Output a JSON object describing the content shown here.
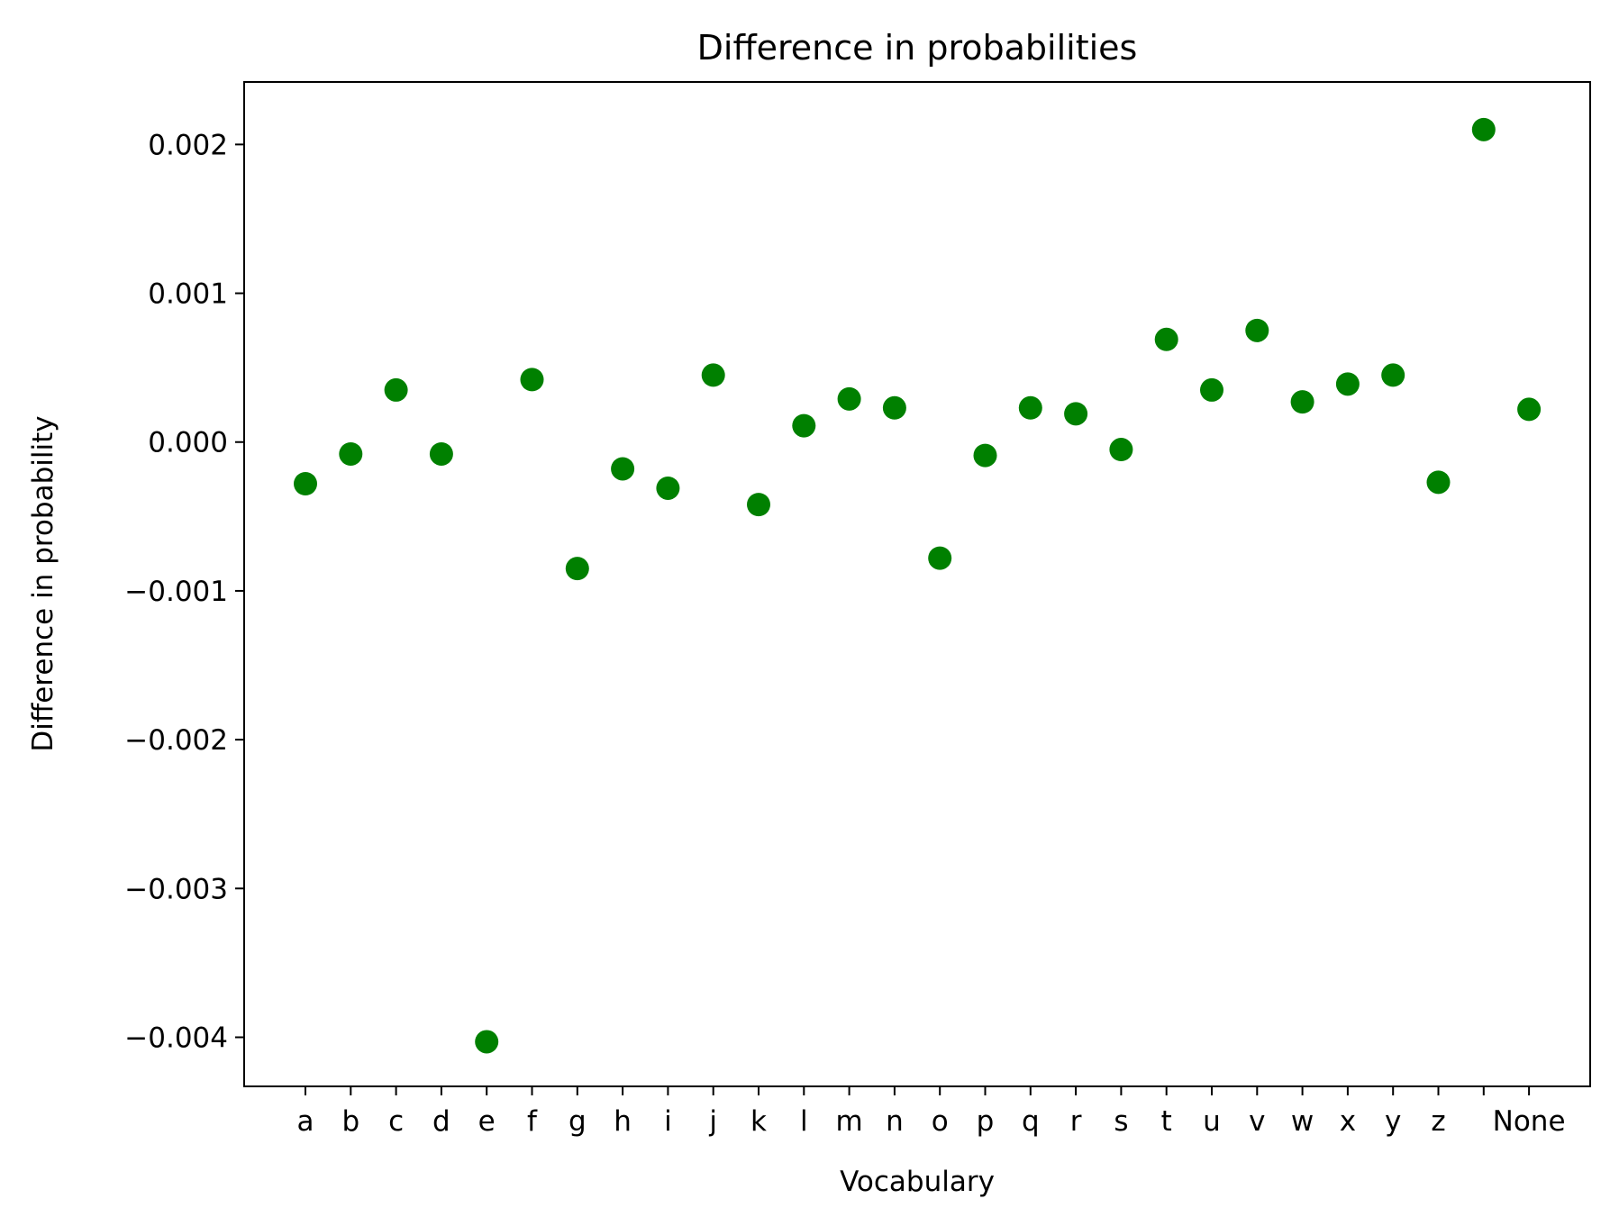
{
  "chart_data": {
    "type": "scatter",
    "title": "Difference in probabilities",
    "xlabel": "Vocabulary",
    "ylabel": "Difference in probability",
    "categories": [
      "a",
      "b",
      "c",
      "d",
      "e",
      "f",
      "g",
      "h",
      "i",
      "j",
      "k",
      "l",
      "m",
      "n",
      "o",
      "p",
      "q",
      "r",
      "s",
      "t",
      "u",
      "v",
      "w",
      "x",
      "y",
      "z",
      "",
      "None"
    ],
    "values": [
      -0.00028,
      -8e-05,
      0.00035,
      -8e-05,
      -0.00403,
      0.00042,
      -0.00085,
      -0.00018,
      -0.00031,
      0.00045,
      -0.00042,
      0.00011,
      0.00029,
      0.00023,
      -0.00078,
      -9e-05,
      0.00023,
      0.00019,
      -5e-05,
      0.00069,
      0.00035,
      0.00075,
      0.00027,
      0.00039,
      0.00045,
      -0.00027,
      0.0021,
      0.00022
    ],
    "yticks": [
      -0.004,
      -0.003,
      -0.002,
      -0.001,
      0.0,
      0.001,
      0.002
    ],
    "ytick_labels": [
      "−0.004",
      "−0.003",
      "−0.002",
      "−0.001",
      "0.000",
      "0.001",
      "0.002"
    ],
    "ylim": [
      -0.00433,
      0.00242
    ],
    "grid": false,
    "legend": "none",
    "marker_color": "#008000"
  }
}
